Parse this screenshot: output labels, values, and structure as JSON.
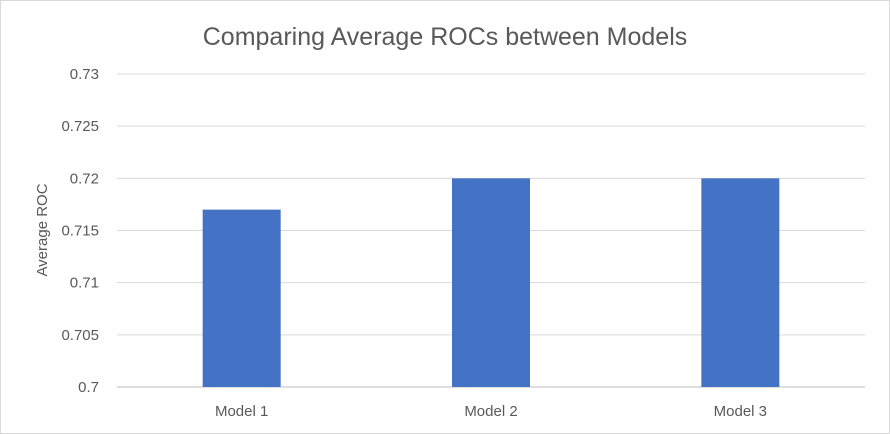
{
  "chart_data": {
    "type": "bar",
    "title": "Comparing Average ROCs between Models",
    "xlabel": "",
    "ylabel": "Average ROC",
    "categories": [
      "Model 1",
      "Model 2",
      "Model 3"
    ],
    "values": [
      0.717,
      0.72,
      0.72
    ],
    "ylim": [
      0.7,
      0.73
    ],
    "yticks": [
      "0.7",
      "0.705",
      "0.71",
      "0.715",
      "0.72",
      "0.725",
      "0.73"
    ],
    "grid": true,
    "legend": "none",
    "bar_color": "#4472C4"
  }
}
